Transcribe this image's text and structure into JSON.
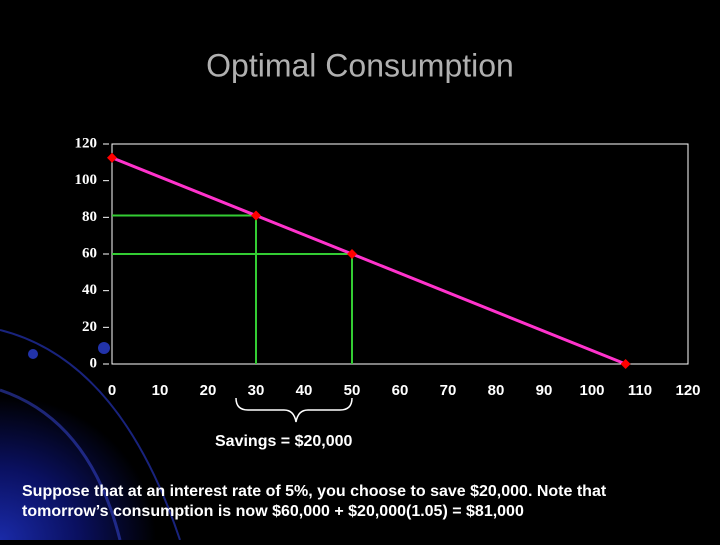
{
  "title": "Optimal Consumption",
  "chart_data": {
    "type": "line",
    "x": [
      0,
      30,
      50,
      107
    ],
    "series": [
      {
        "color": "#ff33cc",
        "marker_color": "#ff0000",
        "values": [
          112.5,
          81,
          60,
          0
        ]
      }
    ],
    "xlim": [
      0,
      120
    ],
    "ylim": [
      0,
      120
    ],
    "xticks": [
      0,
      10,
      20,
      30,
      40,
      50,
      60,
      70,
      80,
      90,
      100,
      110,
      120
    ],
    "yticks": [
      0,
      20,
      40,
      60,
      80,
      100,
      120
    ],
    "guide_color": "#33cc33",
    "annotation": "Savings = $20,000"
  },
  "caption": [
    "Suppose that at an interest rate of 5%, you choose to save $20,000.  Note that",
    "tomorrow’s consumption is now $60,000 + $20,000(1.05) = $81,000"
  ]
}
